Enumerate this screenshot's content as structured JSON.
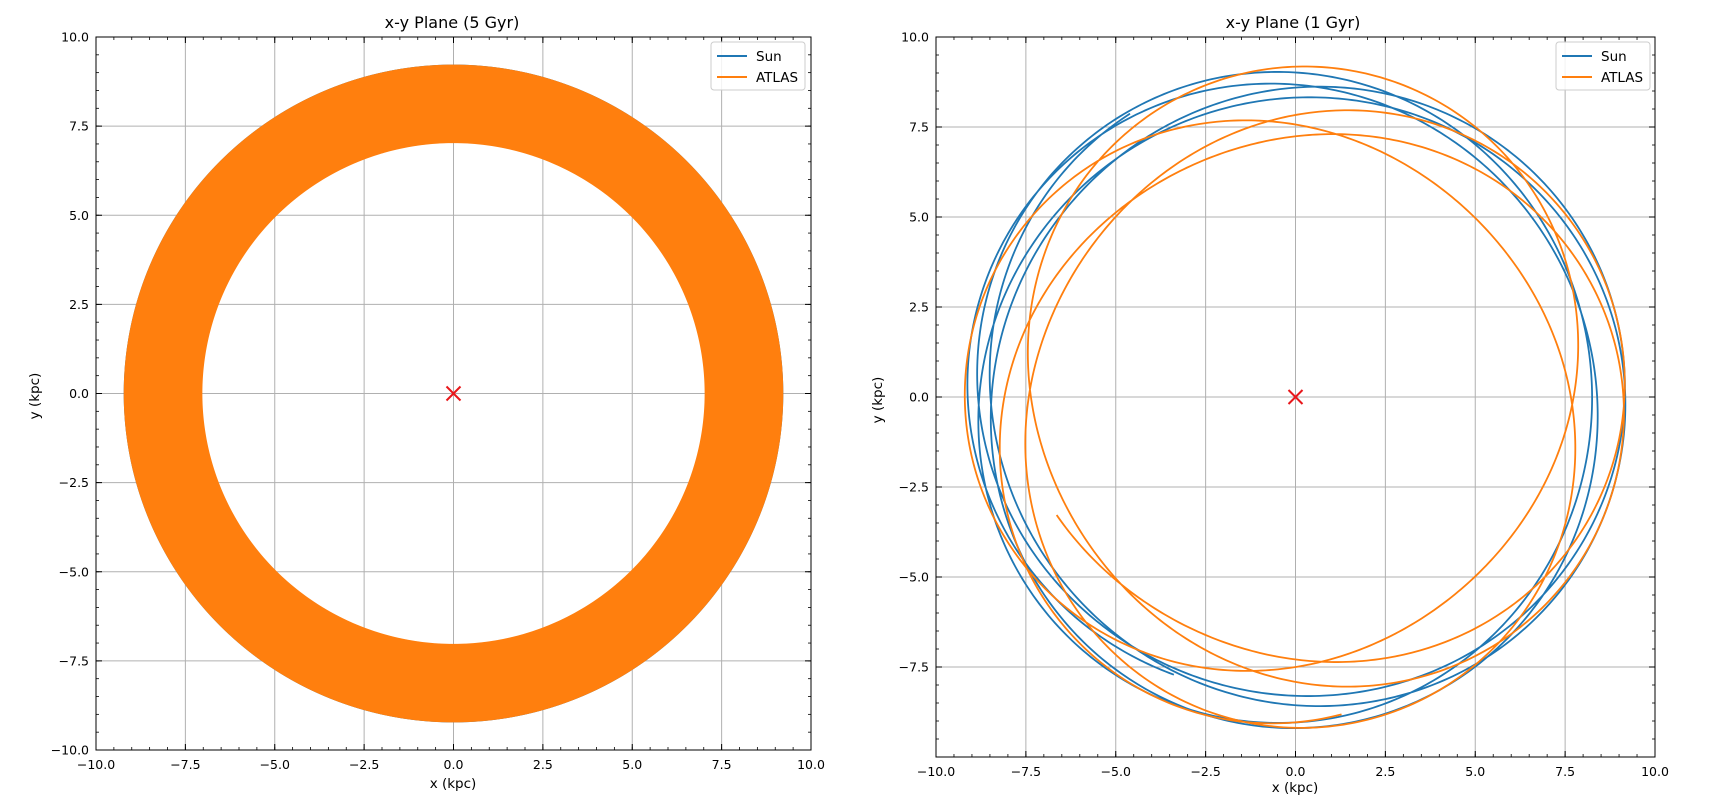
{
  "chart_data": [
    {
      "type": "line",
      "title": "x-y Plane (5 Gyr)",
      "xlabel": "x (kpc)",
      "ylabel": "y (kpc)",
      "xlim": [
        -10.0,
        10.0
      ],
      "ylim": [
        -10.0,
        10.0
      ],
      "xticks": [
        -10.0,
        -7.5,
        -5.0,
        -2.5,
        0.0,
        2.5,
        5.0,
        7.5,
        10.0
      ],
      "yticks": [
        -10.0,
        -7.5,
        -5.0,
        -2.5,
        0.0,
        2.5,
        5.0,
        7.5,
        10.0
      ],
      "xtick_labels": [
        "−10.0",
        "−7.5",
        "−5.0",
        "−2.5",
        "0.0",
        "2.5",
        "5.0",
        "7.5",
        "10.0"
      ],
      "ytick_labels": [
        "−10.0",
        "−7.5",
        "−5.0",
        "−2.5",
        "0.0",
        "2.5",
        "5.0",
        "7.5",
        "10.0"
      ],
      "grid": true,
      "legend_position": "top-right",
      "center_marker": {
        "x": 0.0,
        "y": 0.0,
        "symbol": "x",
        "color": "#e8171b"
      },
      "series": [
        {
          "name": "Sun",
          "color": "#1f77b4",
          "rmin": 8.25,
          "rmax": 9.2,
          "cycles": 36,
          "turns": 20.0,
          "ratio": 1.44,
          "phase": 0.3,
          "r_phase": 0.0
        },
        {
          "name": "ATLAS",
          "color": "#ff7f0e",
          "rmin": 7.05,
          "rmax": 9.2,
          "cycles": 34,
          "turns": 19.0,
          "ratio": 1.37,
          "phase": 1.7,
          "r_phase": 0.0
        }
      ]
    },
    {
      "type": "line",
      "title": "x-y Plane (1 Gyr)",
      "xlabel": "x (kpc)",
      "ylabel": "y (kpc)",
      "xlim": [
        -10.0,
        10.0
      ],
      "ylim": [
        -10.0,
        10.0
      ],
      "xticks": [
        -10.0,
        -7.5,
        -5.0,
        -2.5,
        0.0,
        2.5,
        5.0,
        7.5,
        10.0
      ],
      "yticks": [
        -7.5,
        -5.0,
        -2.5,
        0.0,
        2.5,
        5.0,
        7.5,
        10.0
      ],
      "xtick_labels": [
        "−10.0",
        "−7.5",
        "−5.0",
        "−2.5",
        "0.0",
        "2.5",
        "5.0",
        "7.5",
        "10.0"
      ],
      "ytick_labels": [
        "−7.5",
        "−5.0",
        "−2.5",
        "0.0",
        "2.5",
        "5.0",
        "7.5",
        "10.0"
      ],
      "grid": true,
      "legend_position": "top-right",
      "center_marker": {
        "x": 0.0,
        "y": 0.0,
        "symbol": "x",
        "color": "#e8171b"
      },
      "series": [
        {
          "name": "Sun",
          "color": "#1f77b4",
          "rmin": 8.25,
          "rmax": 9.2,
          "cycles": 1,
          "turns": 4.35,
          "ratio": 1.44,
          "phase": 2.1,
          "r_phase": 0.6
        },
        {
          "name": "ATLAS",
          "color": "#ff7f0e",
          "rmin": 7.05,
          "rmax": 9.2,
          "cycles": 1,
          "turns": 4.2,
          "ratio": 1.37,
          "phase": 3.6,
          "r_phase": 2.3
        }
      ]
    }
  ]
}
